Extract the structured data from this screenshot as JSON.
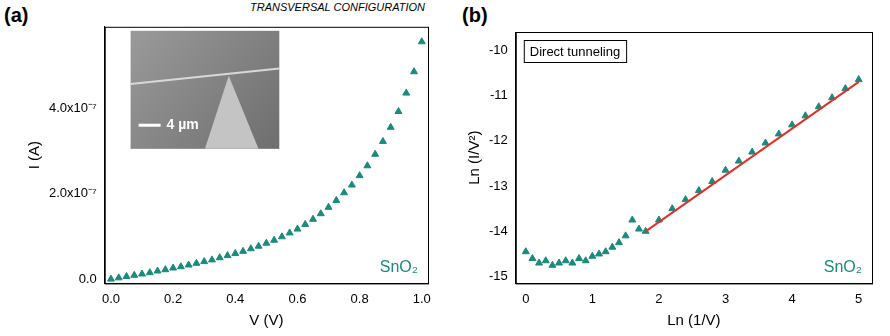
{
  "title": "TRANSVERSAL CONFIGURATION",
  "chart_data": [
    {
      "panel": "(a)",
      "type": "scatter",
      "grid": false,
      "x_label": "V (V)",
      "y_label": "I (A)",
      "xlim": [
        -0.02,
        1.02
      ],
      "xticks": [
        {
          "value": 0,
          "label": "0.0"
        },
        {
          "value": 0.2,
          "label": "0.2"
        },
        {
          "value": 0.4,
          "label": "0.4"
        },
        {
          "value": 0.6,
          "label": "0.6"
        },
        {
          "value": 0.8,
          "label": "0.8"
        },
        {
          "value": 1.0,
          "label": "1.0"
        }
      ],
      "ylim": [
        -1e-08,
        5.9e-07
      ],
      "yticks": [
        {
          "value": 0,
          "label": "0.0"
        },
        {
          "value": 2e-07,
          "label": "2.0x10⁻⁷"
        },
        {
          "value": 4e-07,
          "label": "4.0x10⁻⁷"
        }
      ],
      "series": [
        {
          "color": "#1a8a7e",
          "marker": "triangle",
          "x": [
            0,
            0.025,
            0.05,
            0.075,
            0.1,
            0.125,
            0.15,
            0.175,
            0.2,
            0.225,
            0.25,
            0.275,
            0.3,
            0.325,
            0.35,
            0.375,
            0.4,
            0.425,
            0.45,
            0.475,
            0.5,
            0.525,
            0.55,
            0.575,
            0.6,
            0.625,
            0.65,
            0.675,
            0.7,
            0.725,
            0.75,
            0.775,
            0.8,
            0.825,
            0.85,
            0.875,
            0.9,
            0.925,
            0.95,
            0.975,
            1.0
          ],
          "values": [
            0.0,
            3e-09,
            6e-09,
            9e-09,
            1.2e-08,
            1.5e-08,
            1.9e-08,
            2.2e-08,
            2.6e-08,
            2.9e-08,
            3.3e-08,
            3.7e-08,
            4.1e-08,
            4.5e-08,
            5e-08,
            5.5e-08,
            6e-08,
            6.5e-08,
            7.1e-08,
            7.7e-08,
            8.4e-08,
            9.1e-08,
            9.9e-08,
            1.08e-07,
            1.17e-07,
            1.28e-07,
            1.4e-07,
            1.53e-07,
            1.68e-07,
            1.84e-07,
            2.02e-07,
            2.2e-07,
            2.42e-07,
            2.65e-07,
            2.92e-07,
            3.22e-07,
            3.55e-07,
            3.92e-07,
            4.35e-07,
            4.85e-07,
            5.55e-07
          ]
        }
      ],
      "annotation": "SnO₂",
      "inset": {
        "scale_bar": "4 µm"
      }
    },
    {
      "panel": "(b)",
      "type": "scatter",
      "grid": false,
      "x_label": "Ln (1/V)",
      "y_label": "Ln (I/V²)",
      "xlim": [
        -0.15,
        5.2
      ],
      "xticks": [
        0,
        1,
        2,
        3,
        4,
        5
      ],
      "ylim": [
        -15.15,
        -9.6
      ],
      "yticks": [
        -15,
        -14,
        -13,
        -12,
        -11,
        -10
      ],
      "series": [
        {
          "color": "#1a8a7e",
          "marker": "triangle",
          "x": [
            0,
            0.1,
            0.2,
            0.3,
            0.4,
            0.5,
            0.6,
            0.7,
            0.8,
            0.9,
            1.0,
            1.1,
            1.2,
            1.3,
            1.4,
            1.5,
            1.6,
            1.7,
            1.8,
            2.0,
            2.2,
            2.4,
            2.6,
            2.8,
            3.0,
            3.2,
            3.4,
            3.6,
            3.8,
            4.0,
            4.2,
            4.4,
            4.6,
            4.8,
            5.0
          ],
          "values": [
            -14.45,
            -14.6,
            -14.7,
            -14.65,
            -14.75,
            -14.7,
            -14.65,
            -14.7,
            -14.6,
            -14.65,
            -14.55,
            -14.5,
            -14.45,
            -14.35,
            -14.25,
            -14.1,
            -13.75,
            -13.95,
            -14.0,
            -13.75,
            -13.5,
            -13.3,
            -13.1,
            -12.9,
            -12.65,
            -12.45,
            -12.25,
            -12.05,
            -11.85,
            -11.65,
            -11.45,
            -11.25,
            -11.05,
            -10.85,
            -10.65
          ]
        },
        {
          "type": "line",
          "color": "#e0302a",
          "line_style": "solid",
          "x": [
            1.8,
            5.0
          ],
          "values": [
            -14.0,
            -10.7
          ]
        }
      ],
      "label_box": "Direct tunneling",
      "annotation": "SnO₂"
    }
  ]
}
